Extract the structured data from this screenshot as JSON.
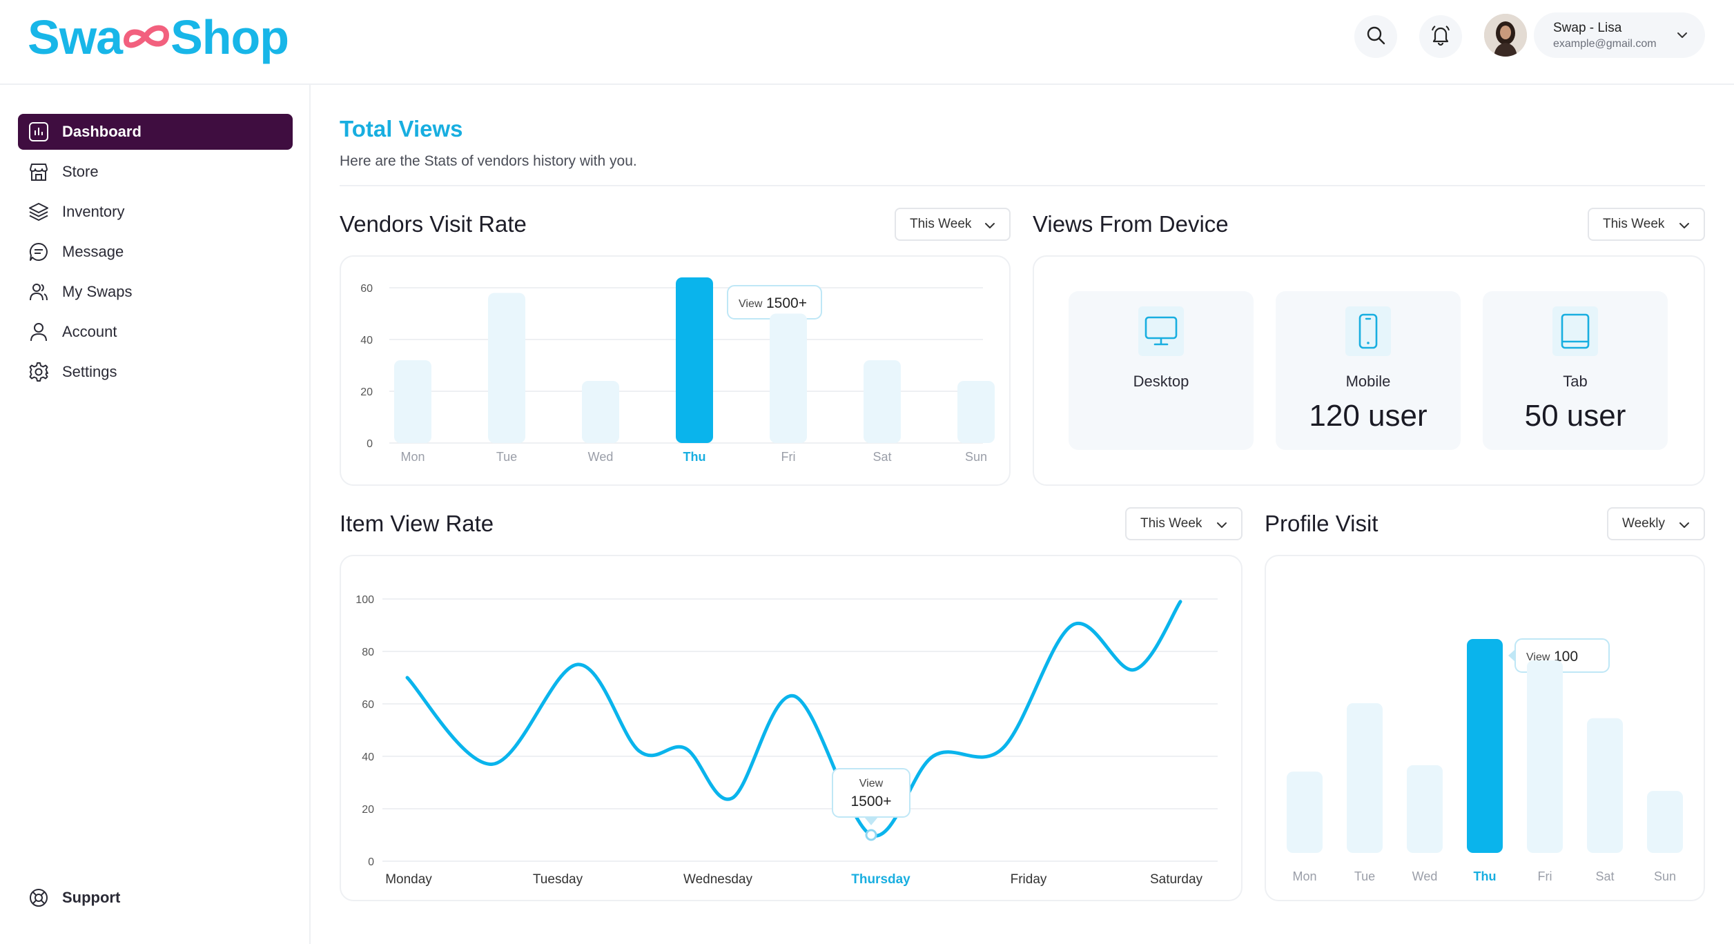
{
  "header": {
    "logo_left": "Swa",
    "logo_right": "Shop",
    "user_name": "Swap - Lisa",
    "user_email": "example@gmail.com"
  },
  "sidebar": {
    "items": [
      {
        "label": "Dashboard",
        "icon": "bar-chart-icon",
        "active": true
      },
      {
        "label": "Store",
        "icon": "store-icon"
      },
      {
        "label": "Inventory",
        "icon": "layers-icon"
      },
      {
        "label": "Message",
        "icon": "chat-icon"
      },
      {
        "label": "My Swaps",
        "icon": "users-icon"
      },
      {
        "label": "Account",
        "icon": "user-icon"
      },
      {
        "label": "Settings",
        "icon": "gear-icon"
      }
    ],
    "support_label": "Support"
  },
  "main": {
    "title": "Total Views",
    "subtitle": "Here are the Stats of vendors history with you."
  },
  "vendors": {
    "title": "Vendors Visit Rate",
    "filter": "This Week",
    "tooltip_label": "View",
    "tooltip_value": "1500+"
  },
  "devices": {
    "title": "Views From Device",
    "filter": "This Week",
    "tiles": [
      {
        "label": "Desktop",
        "value": "",
        "icon": "monitor-icon"
      },
      {
        "label": "Mobile",
        "value": "120 user",
        "icon": "phone-icon"
      },
      {
        "label": "Tab",
        "value": "50 user",
        "icon": "tablet-icon"
      }
    ]
  },
  "item_view": {
    "title": "Item View Rate",
    "filter": "This Week",
    "tooltip_label": "View",
    "tooltip_value": "1500+"
  },
  "profile": {
    "title": "Profile Visit",
    "filter": "Weekly",
    "tooltip_label": "View",
    "tooltip_value": "100"
  },
  "colors": {
    "accent": "#18aee0",
    "bar_active": "#0ab4ec",
    "bar_idle": "#e9f6fc",
    "sidebar_active": "#3f0d40",
    "logo_pink": "#f2607e"
  },
  "chart_data": [
    {
      "type": "bar",
      "title": "Vendors Visit Rate",
      "categories": [
        "Mon",
        "Tue",
        "Wed",
        "Thu",
        "Fri",
        "Sat",
        "Sun"
      ],
      "values": [
        32,
        58,
        24,
        64,
        50,
        32,
        24
      ],
      "highlight": "Thu",
      "ylim": [
        0,
        60
      ],
      "yticks": [
        0,
        20,
        40,
        60
      ],
      "grid": true
    },
    {
      "type": "line",
      "title": "Item View Rate",
      "categories": [
        "Monday",
        "Tuesday",
        "Wednesday",
        "Thursday",
        "Friday",
        "Saturday"
      ],
      "highlight": "Thursday",
      "points": [
        {
          "x": 0.0,
          "y": 70
        },
        {
          "x": 0.55,
          "y": 37
        },
        {
          "x": 1.1,
          "y": 75
        },
        {
          "x": 1.5,
          "y": 42
        },
        {
          "x": 1.8,
          "y": 43
        },
        {
          "x": 2.1,
          "y": 24
        },
        {
          "x": 2.5,
          "y": 63
        },
        {
          "x": 3.0,
          "y": 10
        },
        {
          "x": 3.4,
          "y": 40
        },
        {
          "x": 3.85,
          "y": 43
        },
        {
          "x": 4.3,
          "y": 90
        },
        {
          "x": 4.7,
          "y": 73
        },
        {
          "x": 5.0,
          "y": 99
        }
      ],
      "ylim": [
        0,
        100
      ],
      "yticks": [
        0,
        20,
        40,
        60,
        80,
        100
      ],
      "grid": true
    },
    {
      "type": "bar",
      "title": "Profile Visit",
      "categories": [
        "Mon",
        "Tue",
        "Wed",
        "Thu",
        "Fri",
        "Sat",
        "Sun"
      ],
      "values": [
        38,
        70,
        41,
        100,
        90,
        63,
        29
      ],
      "highlight": "Thu",
      "ylim": [
        0,
        115
      ],
      "grid": false
    }
  ]
}
